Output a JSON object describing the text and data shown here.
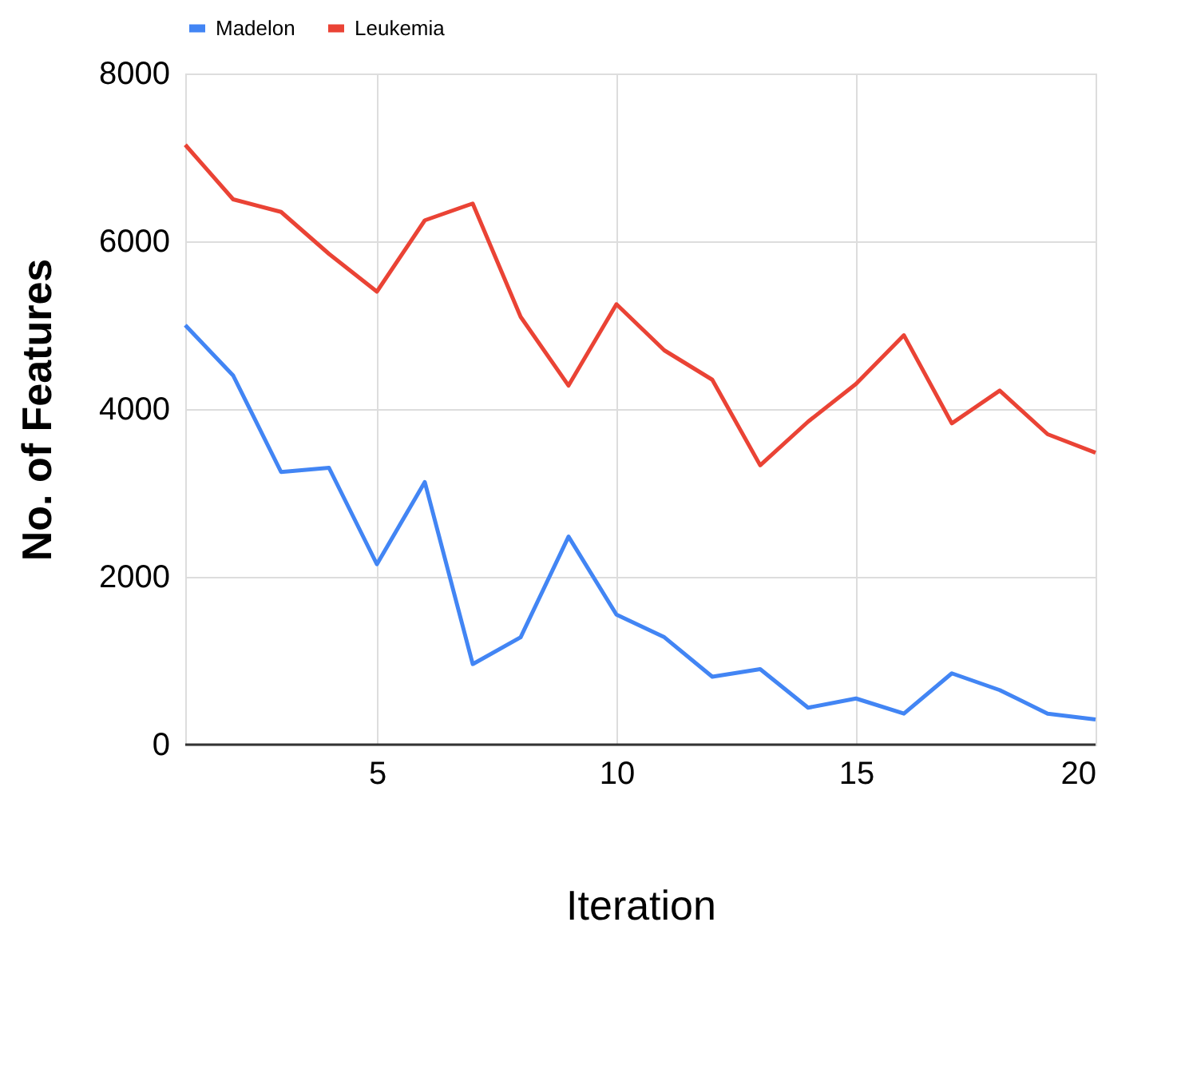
{
  "chart_data": {
    "type": "line",
    "xlabel": "Iteration",
    "ylabel": "No. of Features",
    "x": [
      1,
      2,
      3,
      4,
      5,
      6,
      7,
      8,
      9,
      10,
      11,
      12,
      13,
      14,
      15,
      16,
      17,
      18,
      19,
      20
    ],
    "series": [
      {
        "name": "Madelon",
        "color": "#4285f4",
        "values": [
          5000,
          4400,
          3250,
          3300,
          2150,
          3130,
          960,
          1280,
          2480,
          1550,
          1280,
          810,
          900,
          440,
          550,
          370,
          850,
          650,
          370,
          300
        ]
      },
      {
        "name": "Leukemia",
        "color": "#ea4335",
        "values": [
          7150,
          6500,
          6350,
          5850,
          5400,
          6250,
          6450,
          5100,
          4280,
          5250,
          4700,
          4350,
          3330,
          3850,
          4300,
          4880,
          3830,
          4220,
          3700,
          3480
        ]
      }
    ],
    "xlim": [
      1,
      20
    ],
    "xticks": [
      5,
      10,
      15,
      20
    ],
    "ylim": [
      0,
      8000
    ],
    "yticks": [
      0,
      2000,
      4000,
      6000,
      8000
    ],
    "grid": true,
    "legend": "top",
    "marker": "none",
    "line_style": "solid"
  }
}
